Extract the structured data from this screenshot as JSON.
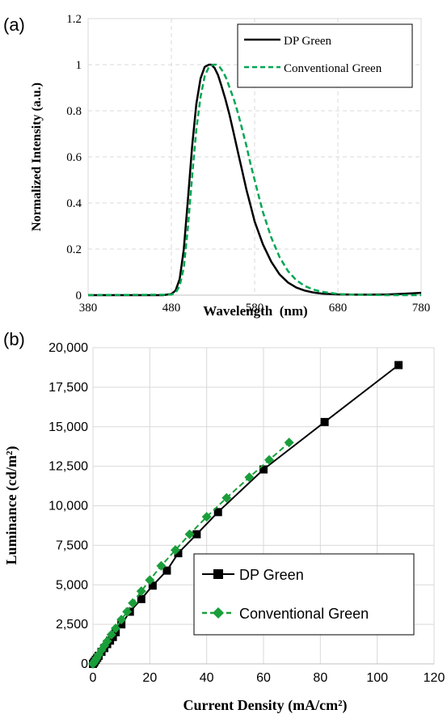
{
  "chart_data": [
    {
      "panel_label": "(a)",
      "type": "line",
      "xlabel": "Wavelength  (nm)",
      "ylabel": "Normalized Intensity (a.u.)",
      "xlim": [
        380,
        780
      ],
      "ylim": [
        0,
        1.2
      ],
      "xticks": [
        "380",
        "480",
        "580",
        "680",
        "780"
      ],
      "yticks": [
        "0",
        "0.2",
        "0.4",
        "0.6",
        "0.8",
        "1",
        "1.2"
      ],
      "grid": "dashed",
      "legend_placement": "top-right",
      "series": [
        {
          "name": "DP Green",
          "style": "solid",
          "color": "#000000",
          "x": [
            380,
            470,
            480,
            485,
            490,
            495,
            500,
            505,
            510,
            515,
            520,
            525,
            528,
            532,
            536,
            540,
            545,
            550,
            555,
            560,
            565,
            570,
            575,
            580,
            590,
            600,
            610,
            620,
            630,
            640,
            650,
            660,
            680,
            700,
            720,
            740,
            760,
            780
          ],
          "y": [
            0,
            0,
            0.005,
            0.02,
            0.07,
            0.2,
            0.42,
            0.65,
            0.83,
            0.94,
            0.99,
            1.0,
            1.0,
            0.985,
            0.955,
            0.91,
            0.85,
            0.78,
            0.7,
            0.62,
            0.54,
            0.46,
            0.39,
            0.32,
            0.22,
            0.145,
            0.09,
            0.055,
            0.033,
            0.02,
            0.012,
            0.007,
            0.003,
            0.002,
            0.002,
            0.003,
            0.006,
            0.01
          ]
        },
        {
          "name": "Conventional Green",
          "style": "dashed",
          "color": "#00a651",
          "x": [
            380,
            480,
            485,
            490,
            495,
            500,
            505,
            510,
            515,
            520,
            525,
            530,
            534,
            538,
            542,
            546,
            550,
            555,
            560,
            565,
            570,
            575,
            580,
            585,
            590,
            600,
            610,
            620,
            630,
            640,
            650,
            660,
            680,
            700,
            720,
            740,
            760,
            780
          ],
          "y": [
            0,
            0.002,
            0.01,
            0.04,
            0.12,
            0.3,
            0.52,
            0.72,
            0.86,
            0.95,
            0.99,
            1.0,
            1.0,
            0.99,
            0.97,
            0.94,
            0.9,
            0.85,
            0.79,
            0.72,
            0.65,
            0.57,
            0.5,
            0.43,
            0.36,
            0.25,
            0.165,
            0.105,
            0.065,
            0.04,
            0.025,
            0.015,
            0.005,
            0.002,
            0.001,
            0.0,
            0.0,
            0.0
          ]
        }
      ]
    },
    {
      "panel_label": "(b)",
      "type": "line",
      "xlabel": "Current Density (mA/cm²)",
      "ylabel": "Luminance (cd/m²)",
      "xlim": [
        0,
        120
      ],
      "ylim": [
        0,
        20000
      ],
      "xticks": [
        "0",
        "20",
        "40",
        "60",
        "80",
        "100",
        "120"
      ],
      "yticks": [
        "0",
        "2,500",
        "5,000",
        "7,500",
        "10,000",
        "12,500",
        "15,000",
        "17,500",
        "20,000"
      ],
      "grid": "solid",
      "legend_placement": "bottom-right",
      "series": [
        {
          "name": "DP Green",
          "style": "solid",
          "marker": "square",
          "color": "#000000",
          "x": [
            0,
            0.3,
            0.6,
            1,
            1.5,
            2,
            3,
            4,
            5,
            6,
            7,
            8,
            10,
            13,
            17,
            21,
            26,
            30,
            36.5,
            44,
            60,
            81.5,
            107.5
          ],
          "y": [
            0,
            70,
            150,
            260,
            380,
            510,
            760,
            1000,
            1250,
            1470,
            1700,
            2000,
            2500,
            3300,
            4100,
            4950,
            5900,
            7000,
            8200,
            9600,
            12300,
            15300,
            18900
          ]
        },
        {
          "name": "Conventional Green",
          "style": "dashed",
          "marker": "diamond",
          "color": "#1a9e3a",
          "x": [
            0,
            0.4,
            0.8,
            1.3,
            2,
            3,
            4,
            5,
            6.5,
            8,
            10,
            12,
            14,
            17,
            20,
            24,
            29,
            34,
            40,
            47,
            55,
            62,
            69
          ],
          "y": [
            0,
            110,
            220,
            370,
            580,
            870,
            1150,
            1430,
            1850,
            2250,
            2800,
            3300,
            3850,
            4600,
            5300,
            6200,
            7200,
            8200,
            9300,
            10500,
            11800,
            12900,
            14000
          ]
        }
      ]
    }
  ]
}
